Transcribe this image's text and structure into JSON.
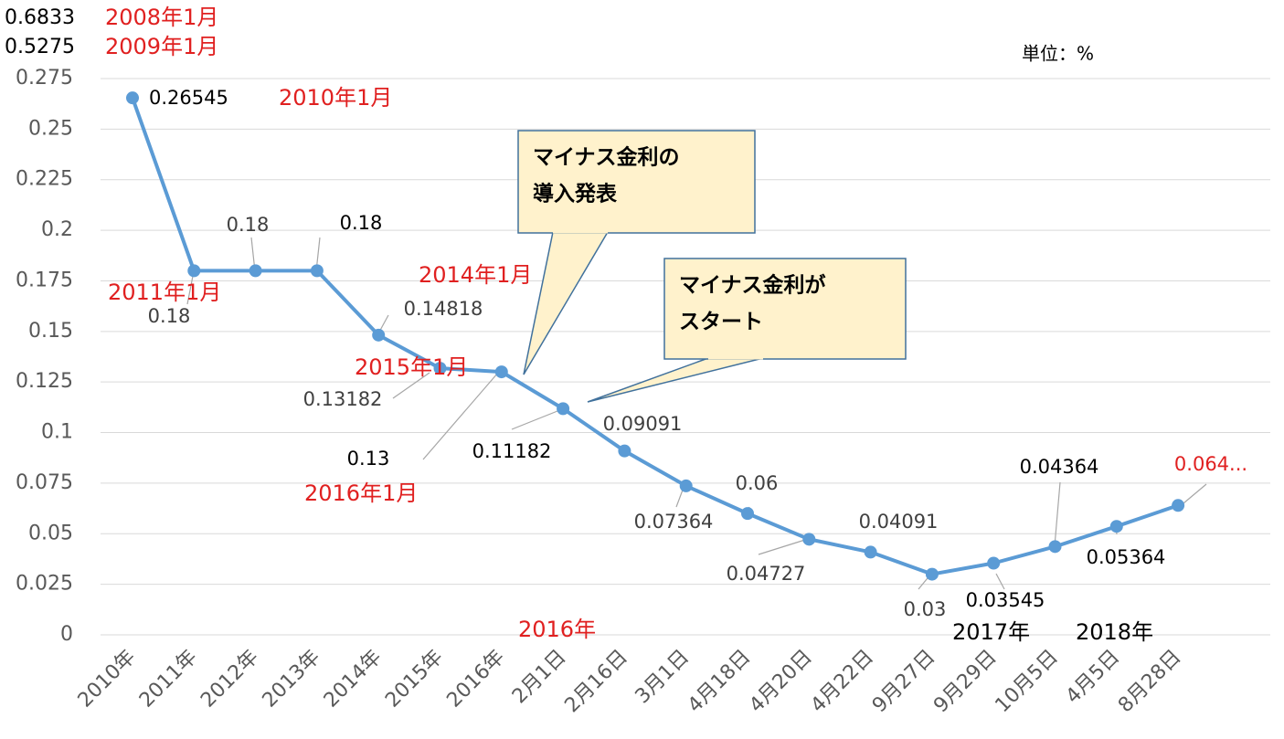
{
  "chart_data": {
    "type": "line",
    "categories": [
      "2010年",
      "2011年",
      "2012年",
      "2013年",
      "2014年",
      "2015年",
      "2016年",
      "2月1日",
      "2月16日",
      "3月1日",
      "4月18日",
      "4月20日",
      "4月22日",
      "9月27日",
      "9月29日",
      "10月5日",
      "4月5日",
      "8月28日"
    ],
    "series": [
      {
        "color": "#5b9bd5",
        "values": [
          0.26545,
          0.18,
          0.18,
          0.18,
          0.14818,
          0.13182,
          0.13,
          0.11182,
          0.09091,
          0.07364,
          0.06,
          0.04727,
          0.04091,
          0.03,
          0.03545,
          0.04364,
          0.05364,
          0.064
        ],
        "value_labels": [
          "0.26545",
          "0.18",
          "0.18",
          "0.18",
          "0.14818",
          "0.13182",
          "0.13",
          "0.11182",
          "0.09091",
          "0.07364",
          "0.06",
          "0.04727",
          "0.04091",
          "0.03",
          "0.03545",
          "0.04364",
          "0.05364",
          "0.064..."
        ],
        "value_label_colors": [
          "#000",
          "#404040",
          "#404040",
          "#000",
          "#404040",
          "#404040",
          "#000",
          "#000",
          "#404040",
          "#404040",
          "#404040",
          "#404040",
          "#404040",
          "#404040",
          "#000",
          "#000",
          "#000",
          "#e02020"
        ]
      }
    ],
    "ylim": [
      0,
      0.275
    ],
    "yticks": [
      0,
      0.025,
      0.05,
      0.075,
      0.1,
      0.125,
      0.15,
      0.175,
      0.2,
      0.225,
      0.25,
      0.275
    ],
    "grid": true,
    "annotations": [
      {
        "text": "0.6833",
        "color": "#000"
      },
      {
        "text": "0.5275",
        "color": "#000"
      },
      {
        "text": "2008年1月",
        "color": "#e02020"
      },
      {
        "text": "2009年1月",
        "color": "#e02020"
      },
      {
        "text": "単位：%",
        "color": "#000"
      },
      {
        "text": "2010年1月",
        "color": "#e02020"
      },
      {
        "text": "2011年1月",
        "color": "#e02020"
      },
      {
        "text": "2014年1月",
        "color": "#e02020"
      },
      {
        "text": "2015年1月",
        "color": "#e02020"
      },
      {
        "text": "2016年1月",
        "color": "#e02020"
      },
      {
        "text": "2016年",
        "color": "#e02020"
      },
      {
        "text": "2017年",
        "color": "#000"
      },
      {
        "text": "2018年",
        "color": "#000"
      }
    ],
    "callouts": [
      [
        "マイナス金利の",
        "導入発表"
      ],
      [
        "マイナス金利が",
        "スタート"
      ]
    ]
  }
}
